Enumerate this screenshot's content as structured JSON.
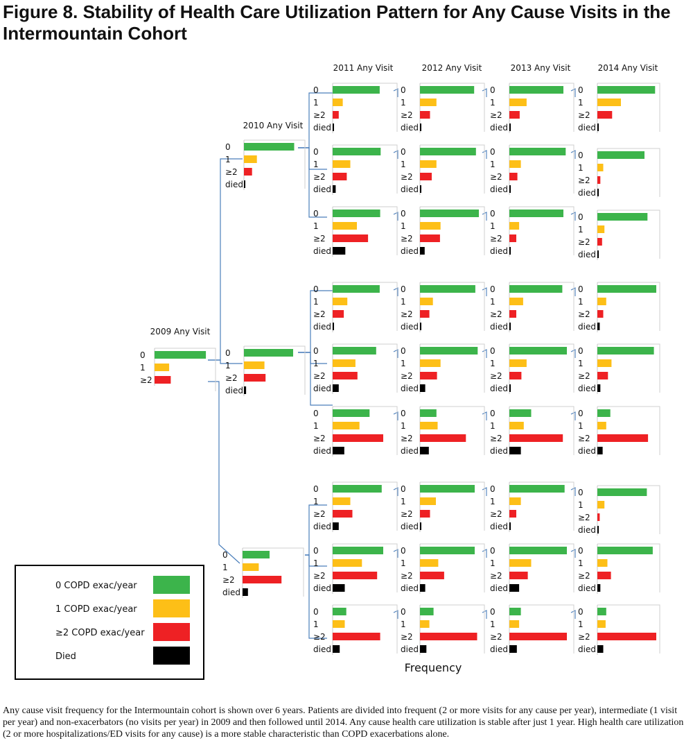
{
  "title": "Figure 8. Stability of Health Care Utilization Pattern for Any Cause Visits in the Intermountain Cohort",
  "caption": "Any cause visit frequency for the Intermountain cohort is shown over  6 years.  Patients are divided into frequent (2 or more visits for any cause per year), intermediate (1 visit per year) and non-exacerbators (no visits per year) in 2009 and then followed until 2014.  Any cause health care utilization is stable after just 1 year.  High health care utilization (2 or more hospitalizations/ED visits for any cause) is a more stable characteristic than COPD exacerbations alone.",
  "colors": {
    "green": "#3cb44b",
    "yellow": "#fdbf17",
    "red": "#ee2124",
    "black": "#000000",
    "frame": "#cfcfcf",
    "connector": "#4a7ebb"
  },
  "chart_data": {
    "type": "bar",
    "orientation": "horizontal",
    "xlabel": "Frequency",
    "category_labels": [
      "0",
      "1",
      "≥2",
      "died"
    ],
    "legend": {
      "placement": "bottom-left",
      "entries": [
        {
          "label": "0 COPD exac/year",
          "color": "#3cb44b"
        },
        {
          "label": "1 COPD exac/year",
          "color": "#fdbf17"
        },
        {
          "label": "≥2 COPD exac/year",
          "color": "#ee2124"
        },
        {
          "label": "Died",
          "color": "#000000"
        }
      ]
    },
    "column_titles": {
      "y2009": "2009 Any Visit",
      "y2010": "2010 Any Visit",
      "y2011": "2011 Any Visit",
      "y2012": "2012 Any Visit",
      "y2013": "2013 Any Visit",
      "y2014": "2014 Any Visit"
    },
    "panels": [
      {
        "id": "p2009",
        "year": 2009,
        "values": [
          0.95,
          0.27,
          0.3
        ]
      },
      {
        "id": "p2010_a",
        "year": 2010,
        "values": [
          0.93,
          0.24,
          0.15,
          0
        ]
      },
      {
        "id": "p2010_b",
        "year": 2010,
        "values": [
          0.91,
          0.38,
          0.4,
          0.04
        ]
      },
      {
        "id": "p2010_c",
        "year": 2010,
        "values": [
          0.5,
          0.3,
          0.72,
          0.1
        ]
      },
      {
        "id": "p2011_1",
        "year": 2011,
        "values": [
          0.93,
          0.2,
          0.12,
          0
        ]
      },
      {
        "id": "p2011_2",
        "year": 2011,
        "values": [
          0.95,
          0.35,
          0.28,
          0.06
        ]
      },
      {
        "id": "p2011_3",
        "year": 2011,
        "values": [
          0.94,
          0.48,
          0.7,
          0.25
        ]
      },
      {
        "id": "p2011_4",
        "year": 2011,
        "values": [
          0.93,
          0.29,
          0.22,
          0.02
        ]
      },
      {
        "id": "p2011_5",
        "year": 2011,
        "values": [
          0.86,
          0.45,
          0.49,
          0.12
        ]
      },
      {
        "id": "p2011_6",
        "year": 2011,
        "values": [
          0.73,
          0.53,
          1.0,
          0.23
        ]
      },
      {
        "id": "p2011_7",
        "year": 2011,
        "values": [
          0.97,
          0.35,
          0.39,
          0.12
        ]
      },
      {
        "id": "p2011_8",
        "year": 2011,
        "values": [
          1.0,
          0.58,
          0.88,
          0.24
        ]
      },
      {
        "id": "p2011_9",
        "year": 2011,
        "values": [
          0.27,
          0.24,
          0.94,
          0.14
        ]
      },
      {
        "id": "p2012_1",
        "year": 2012,
        "values": [
          0.92,
          0.28,
          0.17,
          0
        ]
      },
      {
        "id": "p2012_2",
        "year": 2012,
        "values": [
          0.95,
          0.28,
          0.2,
          0.02
        ]
      },
      {
        "id": "p2012_3",
        "year": 2012,
        "values": [
          1.0,
          0.35,
          0.34,
          0.08
        ]
      },
      {
        "id": "p2012_4",
        "year": 2012,
        "values": [
          0.94,
          0.22,
          0.16,
          0.02
        ]
      },
      {
        "id": "p2012_5",
        "year": 2012,
        "values": [
          0.98,
          0.35,
          0.29,
          0.09
        ]
      },
      {
        "id": "p2012_6",
        "year": 2012,
        "values": [
          0.28,
          0.3,
          0.78,
          0.15
        ]
      },
      {
        "id": "p2012_7",
        "year": 2012,
        "values": [
          0.93,
          0.27,
          0.17,
          0.02
        ]
      },
      {
        "id": "p2012_8",
        "year": 2012,
        "values": [
          0.93,
          0.31,
          0.41,
          0.09
        ]
      },
      {
        "id": "p2012_9",
        "year": 2012,
        "values": [
          0.23,
          0.16,
          0.97,
          0.11
        ]
      },
      {
        "id": "p2013_1",
        "year": 2013,
        "values": [
          0.94,
          0.3,
          0.18,
          0
        ]
      },
      {
        "id": "p2013_2",
        "year": 2013,
        "values": [
          0.98,
          0.2,
          0.14,
          0.02
        ]
      },
      {
        "id": "p2013_3",
        "year": 2013,
        "values": [
          0.94,
          0.17,
          0.12,
          0.02
        ]
      },
      {
        "id": "p2013_4",
        "year": 2013,
        "values": [
          0.92,
          0.24,
          0.12,
          0.02
        ]
      },
      {
        "id": "p2013_5",
        "year": 2013,
        "values": [
          1.0,
          0.3,
          0.21,
          0.02
        ]
      },
      {
        "id": "p2013_6",
        "year": 2013,
        "values": [
          0.38,
          0.25,
          0.93,
          0.2
        ]
      },
      {
        "id": "p2013_7",
        "year": 2013,
        "values": [
          0.96,
          0.2,
          0.12,
          0.02
        ]
      },
      {
        "id": "p2013_8",
        "year": 2013,
        "values": [
          1.0,
          0.38,
          0.32,
          0.17
        ]
      },
      {
        "id": "p2013_9",
        "year": 2013,
        "values": [
          0.2,
          0.17,
          1.0,
          0.13
        ]
      },
      {
        "id": "p2014_1",
        "year": 2014,
        "values": [
          0.98,
          0.4,
          0.25,
          0.02
        ]
      },
      {
        "id": "p2014_2",
        "year": 2014,
        "values": [
          0.8,
          0.1,
          0.05,
          0
        ]
      },
      {
        "id": "p2014_3",
        "year": 2014,
        "values": [
          0.85,
          0.12,
          0.08,
          0.02
        ]
      },
      {
        "id": "p2014_4",
        "year": 2014,
        "values": [
          1.0,
          0.15,
          0.1,
          0.04
        ]
      },
      {
        "id": "p2014_5",
        "year": 2014,
        "values": [
          0.96,
          0.24,
          0.18,
          0.05
        ]
      },
      {
        "id": "p2014_6",
        "year": 2014,
        "values": [
          0.22,
          0.15,
          0.86,
          0.09
        ]
      },
      {
        "id": "p2014_7",
        "year": 2014,
        "values": [
          0.84,
          0.12,
          0.04,
          0.02
        ]
      },
      {
        "id": "p2014_8",
        "year": 2014,
        "values": [
          0.94,
          0.17,
          0.23,
          0.05
        ]
      },
      {
        "id": "p2014_9",
        "year": 2014,
        "values": [
          0.15,
          0.14,
          1.0,
          0.1
        ]
      }
    ]
  }
}
